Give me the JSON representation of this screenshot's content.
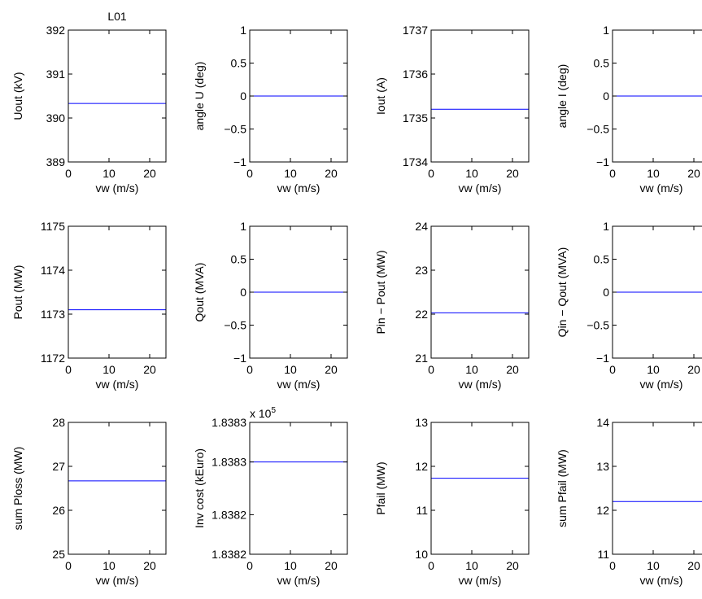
{
  "chart_data": [
    {
      "type": "line",
      "title": "L01",
      "xlabel": "vw (m/s)",
      "ylabel": "Uout (kV)",
      "xlim": [
        0,
        24
      ],
      "ylim": [
        389,
        392
      ],
      "xticks": [
        0,
        10,
        20
      ],
      "xtick_labels": [
        "0",
        "10",
        "20"
      ],
      "yticks": [
        389,
        390,
        391,
        392
      ],
      "ytick_labels": [
        "389",
        "390",
        "391",
        "392"
      ],
      "exponent_label": "",
      "series": [
        {
          "color": "#0000ff",
          "x": [
            0,
            24
          ],
          "y": [
            390.33,
            390.33
          ]
        }
      ]
    },
    {
      "type": "line",
      "title": "",
      "xlabel": "vw (m/s)",
      "ylabel": "angle U (deg)",
      "xlim": [
        0,
        24
      ],
      "ylim": [
        -1,
        1
      ],
      "xticks": [
        0,
        10,
        20
      ],
      "xtick_labels": [
        "0",
        "10",
        "20"
      ],
      "yticks": [
        -1,
        -0.5,
        0,
        0.5,
        1
      ],
      "ytick_labels": [
        "−1",
        "−0.5",
        "0",
        "0.5",
        "1"
      ],
      "exponent_label": "",
      "series": [
        {
          "color": "#0000ff",
          "x": [
            0,
            24
          ],
          "y": [
            0,
            0
          ]
        }
      ]
    },
    {
      "type": "line",
      "title": "",
      "xlabel": "vw (m/s)",
      "ylabel": "Iout (A)",
      "xlim": [
        0,
        24
      ],
      "ylim": [
        1734,
        1737
      ],
      "xticks": [
        0,
        10,
        20
      ],
      "xtick_labels": [
        "0",
        "10",
        "20"
      ],
      "yticks": [
        1734,
        1735,
        1736,
        1737
      ],
      "ytick_labels": [
        "1734",
        "1735",
        "1736",
        "1737"
      ],
      "exponent_label": "",
      "series": [
        {
          "color": "#0000ff",
          "x": [
            0,
            24
          ],
          "y": [
            1735.2,
            1735.2
          ]
        }
      ]
    },
    {
      "type": "line",
      "title": "",
      "xlabel": "vw (m/s)",
      "ylabel": "angle I (deg)",
      "xlim": [
        0,
        24
      ],
      "ylim": [
        -1,
        1
      ],
      "xticks": [
        0,
        10,
        20
      ],
      "xtick_labels": [
        "0",
        "10",
        "20"
      ],
      "yticks": [
        -1,
        -0.5,
        0,
        0.5,
        1
      ],
      "ytick_labels": [
        "−1",
        "−0.5",
        "0",
        "0.5",
        "1"
      ],
      "exponent_label": "",
      "series": [
        {
          "color": "#0000ff",
          "x": [
            0,
            24
          ],
          "y": [
            0,
            0
          ]
        }
      ]
    },
    {
      "type": "line",
      "title": "",
      "xlabel": "vw (m/s)",
      "ylabel": "Pout (MW)",
      "xlim": [
        0,
        24
      ],
      "ylim": [
        1172,
        1175
      ],
      "xticks": [
        0,
        10,
        20
      ],
      "xtick_labels": [
        "0",
        "10",
        "20"
      ],
      "yticks": [
        1172,
        1173,
        1174,
        1175
      ],
      "ytick_labels": [
        "1172",
        "1173",
        "1174",
        "1175"
      ],
      "exponent_label": "",
      "series": [
        {
          "color": "#0000ff",
          "x": [
            0,
            24
          ],
          "y": [
            1173.1,
            1173.1
          ]
        }
      ]
    },
    {
      "type": "line",
      "title": "",
      "xlabel": "vw (m/s)",
      "ylabel": "Qout (MVA)",
      "xlim": [
        0,
        24
      ],
      "ylim": [
        -1,
        1
      ],
      "xticks": [
        0,
        10,
        20
      ],
      "xtick_labels": [
        "0",
        "10",
        "20"
      ],
      "yticks": [
        -1,
        -0.5,
        0,
        0.5,
        1
      ],
      "ytick_labels": [
        "−1",
        "−0.5",
        "0",
        "0.5",
        "1"
      ],
      "exponent_label": "",
      "series": [
        {
          "color": "#0000ff",
          "x": [
            0,
            24
          ],
          "y": [
            0,
            0
          ]
        }
      ]
    },
    {
      "type": "line",
      "title": "",
      "xlabel": "vw (m/s)",
      "ylabel": "Pin − Pout (MW)",
      "xlim": [
        0,
        24
      ],
      "ylim": [
        21,
        24
      ],
      "xticks": [
        0,
        10,
        20
      ],
      "xtick_labels": [
        "0",
        "10",
        "20"
      ],
      "yticks": [
        21,
        22,
        23,
        24
      ],
      "ytick_labels": [
        "21",
        "22",
        "23",
        "24"
      ],
      "exponent_label": "",
      "series": [
        {
          "color": "#0000ff",
          "x": [
            0,
            24
          ],
          "y": [
            22.03,
            22.03
          ]
        }
      ]
    },
    {
      "type": "line",
      "title": "",
      "xlabel": "vw (m/s)",
      "ylabel": "Qin − Qout (MVA)",
      "xlim": [
        0,
        24
      ],
      "ylim": [
        -1,
        1
      ],
      "xticks": [
        0,
        10,
        20
      ],
      "xtick_labels": [
        "0",
        "10",
        "20"
      ],
      "yticks": [
        -1,
        -0.5,
        0,
        0.5,
        1
      ],
      "ytick_labels": [
        "−1",
        "−0.5",
        "0",
        "0.5",
        "1"
      ],
      "exponent_label": "",
      "series": [
        {
          "color": "#0000ff",
          "x": [
            0,
            24
          ],
          "y": [
            0,
            0
          ]
        }
      ]
    },
    {
      "type": "line",
      "title": "",
      "xlabel": "vw (m/s)",
      "ylabel": "sum Ploss (MW)",
      "xlim": [
        0,
        24
      ],
      "ylim": [
        25,
        28
      ],
      "xticks": [
        0,
        10,
        20
      ],
      "xtick_labels": [
        "0",
        "10",
        "20"
      ],
      "yticks": [
        25,
        26,
        27,
        28
      ],
      "ytick_labels": [
        "25",
        "26",
        "27",
        "28"
      ],
      "exponent_label": "",
      "series": [
        {
          "color": "#0000ff",
          "x": [
            0,
            24
          ],
          "y": [
            26.67,
            26.67
          ]
        }
      ]
    },
    {
      "type": "line",
      "title": "",
      "xlabel": "vw (m/s)",
      "ylabel": "Inv cost (kEuro)",
      "xlim": [
        0,
        24
      ],
      "ylim": [
        183822,
        183832
      ],
      "xticks": [
        0,
        10,
        20
      ],
      "xtick_labels": [
        "0",
        "10",
        "20"
      ],
      "yticks": [
        183822,
        183825,
        183829,
        183832
      ],
      "ytick_labels": [
        "1.8382",
        "1.8382",
        "1.8383",
        "1.8383"
      ],
      "exponent_label": "x 10",
      "exponent_power": "5",
      "series": [
        {
          "color": "#0000ff",
          "x": [
            0,
            24
          ],
          "y": [
            183829,
            183829
          ]
        }
      ]
    },
    {
      "type": "line",
      "title": "",
      "xlabel": "vw (m/s)",
      "ylabel": "Pfail (MW)",
      "xlim": [
        0,
        24
      ],
      "ylim": [
        10,
        13
      ],
      "xticks": [
        0,
        10,
        20
      ],
      "xtick_labels": [
        "0",
        "10",
        "20"
      ],
      "yticks": [
        10,
        11,
        12,
        13
      ],
      "ytick_labels": [
        "10",
        "11",
        "12",
        "13"
      ],
      "exponent_label": "",
      "series": [
        {
          "color": "#0000ff",
          "x": [
            0,
            24
          ],
          "y": [
            11.73,
            11.73
          ]
        }
      ]
    },
    {
      "type": "line",
      "title": "",
      "xlabel": "vw (m/s)",
      "ylabel": "sum Pfail (MW)",
      "xlim": [
        0,
        24
      ],
      "ylim": [
        11,
        14
      ],
      "xticks": [
        0,
        10,
        20
      ],
      "xtick_labels": [
        "0",
        "10",
        "20"
      ],
      "yticks": [
        11,
        12,
        13,
        14
      ],
      "ytick_labels": [
        "11",
        "12",
        "13",
        "14"
      ],
      "exponent_label": "",
      "series": [
        {
          "color": "#0000ff",
          "x": [
            0,
            24
          ],
          "y": [
            12.2,
            12.2
          ]
        }
      ]
    }
  ]
}
